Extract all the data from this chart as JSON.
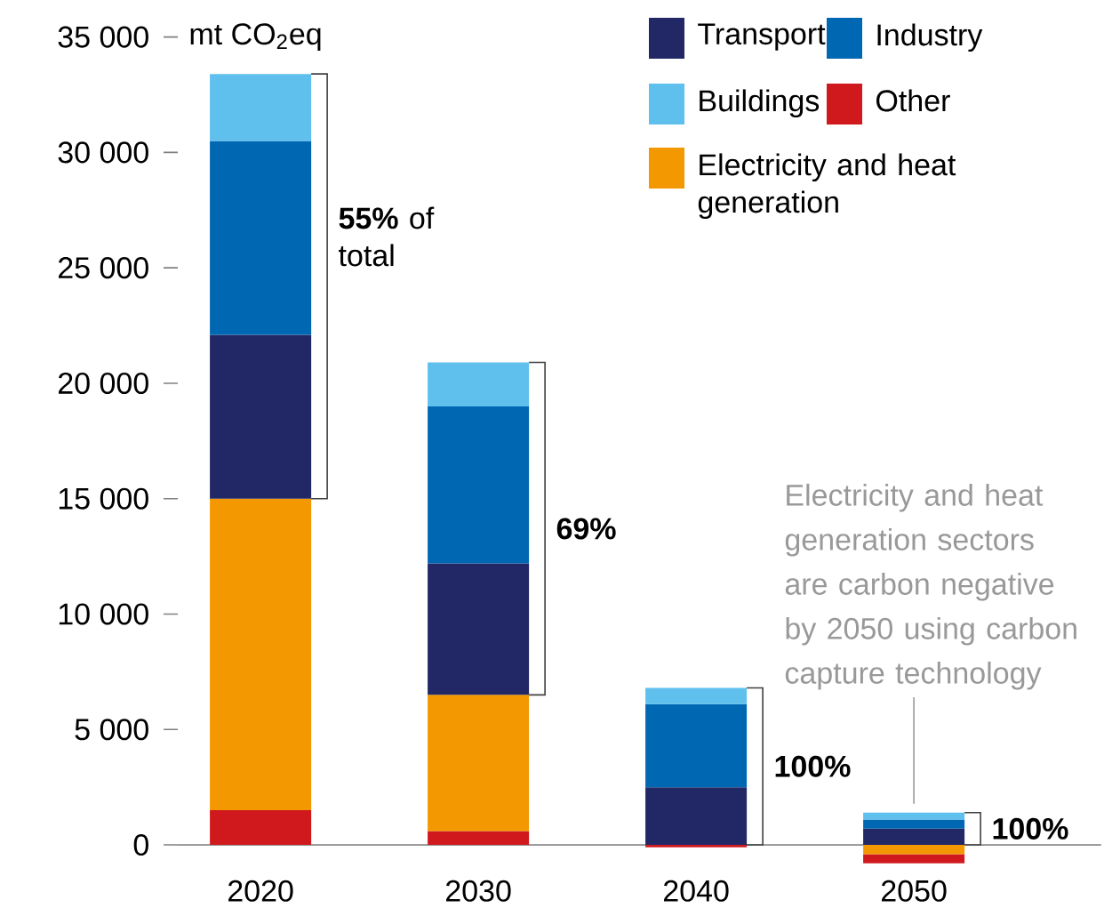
{
  "chart_data": {
    "type": "bar",
    "stacked": true,
    "ylabel": "mt CO$_{2}$eq",
    "categories": [
      "2020",
      "2030",
      "2040",
      "2050"
    ],
    "series": [
      {
        "name": "Other",
        "color": "#d0191d",
        "values": [
          1500,
          600,
          -100,
          -400
        ]
      },
      {
        "name": "Electricity and heat generation",
        "color": "#f39800",
        "values": [
          13500,
          5900,
          0,
          -400
        ]
      },
      {
        "name": "Transport",
        "color": "#222765",
        "values": [
          7100,
          5700,
          2500,
          700
        ]
      },
      {
        "name": "Industry",
        "color": "#0068b3",
        "values": [
          8400,
          6800,
          3600,
          400
        ]
      },
      {
        "name": "Buildings",
        "color": "#5fc0ee",
        "values": [
          2900,
          1900,
          700,
          300
        ]
      }
    ],
    "ylim": [
      -1000,
      35000
    ],
    "yticks": [
      0,
      {
        "value": 5000,
        "label": "5 000"
      },
      {
        "value": 10000,
        "label": "10 000"
      },
      {
        "value": 15000,
        "label": "15 000"
      },
      {
        "value": 20000,
        "label": "20 000"
      },
      {
        "value": 25000,
        "label": "25 000"
      },
      {
        "value": 30000,
        "label": "30 000"
      },
      {
        "value": 35000,
        "label": "35 000"
      }
    ],
    "legend": "top right",
    "annotations": [
      "**55%** of total",
      "69%",
      "100%",
      "100%",
      {
        "text": "Electricity and heat generation sectors are carbon negative by 2050 using carbon capture technology",
        "x": "2050",
        "y": 1400
      }
    ]
  }
}
